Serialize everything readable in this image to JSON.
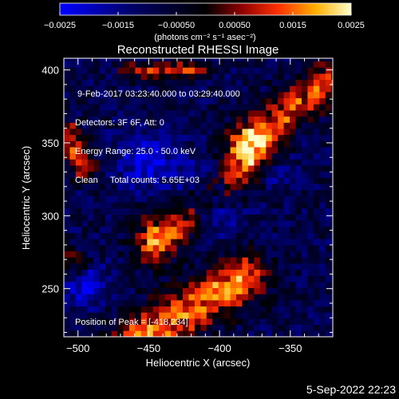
{
  "chart_data": {
    "type": "heatmap",
    "title": "Reconstructed RHESSI Image",
    "xlabel": "Heliocentric X (arcsec)",
    "ylabel": "Heliocentric Y (arcsec)",
    "xlim": [
      -510,
      -320
    ],
    "ylim": [
      217,
      408
    ],
    "x_ticks": [
      {
        "value": -500,
        "label": "−500"
      },
      {
        "value": -450,
        "label": "−450"
      },
      {
        "value": -400,
        "label": "−400"
      },
      {
        "value": -350,
        "label": "−350"
      }
    ],
    "y_ticks": [
      {
        "value": 250,
        "label": "250"
      },
      {
        "value": 300,
        "label": "300"
      },
      {
        "value": 350,
        "label": "350"
      },
      {
        "value": 400,
        "label": "400"
      }
    ],
    "colorbar": {
      "range": [
        -0.0025,
        0.0025
      ],
      "ticks": [
        {
          "value": -0.0025,
          "label": "−0.0025"
        },
        {
          "value": -0.0015,
          "label": "−0.0015"
        },
        {
          "value": -0.0005,
          "label": "−0.00050"
        },
        {
          "value": 0.0005,
          "label": "0.00050"
        },
        {
          "value": 0.0015,
          "label": "0.0015"
        },
        {
          "value": 0.0025,
          "label": "0.0025"
        }
      ],
      "units": "(photons cm⁻² s⁻¹ asec⁻²)",
      "colors": [
        "#0000ff",
        "#000044",
        "#000000",
        "#8a0000",
        "#ff3000",
        "#ffb000",
        "#ffffcc"
      ]
    },
    "info_lines": [
      " 9-Feb-2017 03:23:40.000 to 03:29:40.000",
      "Detectors: 3F 6F, Att: 0",
      "Energy Range: 25.0 - 50.0 keV",
      "Clean     Total counts: 5.65E+03"
    ],
    "peak_label": "Position of Peak = [-418,234]",
    "structures": [
      {
        "x": -465,
        "y": 210,
        "x2": -382,
        "y2": 258,
        "width": 18,
        "peak": 0.0024
      },
      {
        "x": -445,
        "y": 283,
        "x2": -372,
        "y2": 343,
        "width": 17,
        "peak": 0.0024
      },
      {
        "x": -382,
        "y": 350,
        "x2": -325,
        "y2": 392,
        "width": 14,
        "peak": 0.0021
      },
      {
        "x": -465,
        "y": 400,
        "x2": -412,
        "y2": 400,
        "width": 6,
        "peak": 0.0018
      },
      {
        "x": -508,
        "y": 357,
        "x2": -496,
        "y2": 333,
        "width": 9,
        "peak": 0.002
      },
      {
        "x": -512,
        "y": 273,
        "x2": -500,
        "y2": 268,
        "width": 8,
        "peak": 0.0016
      }
    ],
    "negative_regions": [
      {
        "x": -408,
        "y": 314,
        "r": 16,
        "depth": 0.0022
      },
      {
        "x": -452,
        "y": 338,
        "r": 13,
        "depth": 0.0014
      },
      {
        "x": -493,
        "y": 252,
        "r": 10,
        "depth": 0.0014
      },
      {
        "x": -362,
        "y": 333,
        "r": 10,
        "depth": 0.0012
      }
    ]
  },
  "footer": {
    "timestamp": "5-Sep-2022 22:23"
  }
}
